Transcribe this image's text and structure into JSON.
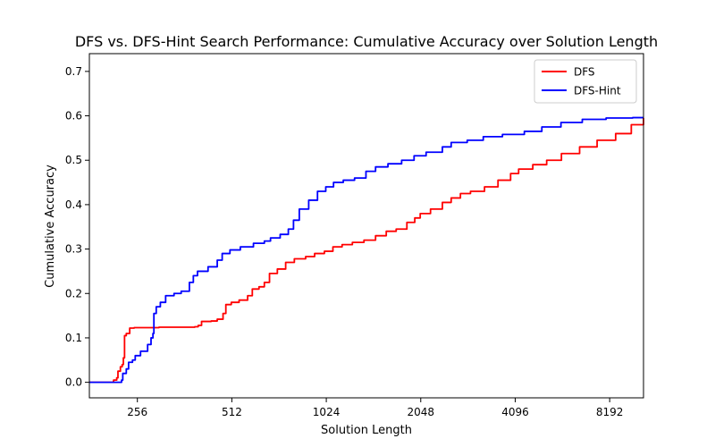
{
  "chart_data": {
    "type": "line",
    "title": "DFS vs. DFS-Hint Search Performance: Cumulative Accuracy over Solution Length",
    "xlabel": "Solution Length",
    "ylabel": "Cumulative Accuracy",
    "x_scale": "log2",
    "xlim": [
      180,
      10500
    ],
    "ylim": [
      -0.035,
      0.74
    ],
    "x_ticks": [
      256,
      512,
      1024,
      2048,
      4096,
      8192
    ],
    "x_tick_labels": [
      "256",
      "512",
      "1024",
      "2048",
      "4096",
      "8192"
    ],
    "y_ticks": [
      0.0,
      0.1,
      0.2,
      0.3,
      0.4,
      0.5,
      0.6,
      0.7
    ],
    "y_tick_labels": [
      "0.0",
      "0.1",
      "0.2",
      "0.3",
      "0.4",
      "0.5",
      "0.6",
      "0.7"
    ],
    "grid": false,
    "legend_position": "top-right",
    "series": [
      {
        "name": "DFS",
        "color": "#ff0000",
        "points": [
          [
            180,
            0.0
          ],
          [
            212,
            0.0
          ],
          [
            215,
            0.005
          ],
          [
            220,
            0.01
          ],
          [
            222,
            0.025
          ],
          [
            226,
            0.035
          ],
          [
            229,
            0.04
          ],
          [
            231,
            0.055
          ],
          [
            233,
            0.105
          ],
          [
            236,
            0.11
          ],
          [
            240,
            0.11
          ],
          [
            242,
            0.122
          ],
          [
            250,
            0.123
          ],
          [
            300,
            0.124
          ],
          [
            360,
            0.124
          ],
          [
            390,
            0.125
          ],
          [
            400,
            0.128
          ],
          [
            410,
            0.137
          ],
          [
            440,
            0.138
          ],
          [
            460,
            0.142
          ],
          [
            480,
            0.155
          ],
          [
            490,
            0.175
          ],
          [
            510,
            0.18
          ],
          [
            540,
            0.185
          ],
          [
            575,
            0.195
          ],
          [
            595,
            0.21
          ],
          [
            625,
            0.215
          ],
          [
            650,
            0.225
          ],
          [
            675,
            0.245
          ],
          [
            715,
            0.255
          ],
          [
            760,
            0.27
          ],
          [
            810,
            0.278
          ],
          [
            880,
            0.283
          ],
          [
            940,
            0.29
          ],
          [
            1010,
            0.295
          ],
          [
            1075,
            0.305
          ],
          [
            1150,
            0.31
          ],
          [
            1240,
            0.315
          ],
          [
            1350,
            0.32
          ],
          [
            1470,
            0.33
          ],
          [
            1590,
            0.34
          ],
          [
            1710,
            0.345
          ],
          [
            1850,
            0.36
          ],
          [
            1960,
            0.37
          ],
          [
            2040,
            0.38
          ],
          [
            2200,
            0.39
          ],
          [
            2400,
            0.405
          ],
          [
            2560,
            0.415
          ],
          [
            2740,
            0.425
          ],
          [
            2950,
            0.43
          ],
          [
            3270,
            0.44
          ],
          [
            3610,
            0.455
          ],
          [
            3960,
            0.47
          ],
          [
            4200,
            0.48
          ],
          [
            4660,
            0.49
          ],
          [
            5160,
            0.5
          ],
          [
            5750,
            0.515
          ],
          [
            6570,
            0.53
          ],
          [
            7470,
            0.545
          ],
          [
            8560,
            0.56
          ],
          [
            9600,
            0.58
          ],
          [
            10500,
            0.595
          ]
        ]
      },
      {
        "name": "DFS-Hint",
        "color": "#0000ff",
        "points": [
          [
            180,
            0.0
          ],
          [
            225,
            0.0
          ],
          [
            228,
            0.005
          ],
          [
            230,
            0.02
          ],
          [
            236,
            0.03
          ],
          [
            240,
            0.045
          ],
          [
            247,
            0.05
          ],
          [
            252,
            0.06
          ],
          [
            262,
            0.07
          ],
          [
            276,
            0.085
          ],
          [
            283,
            0.1
          ],
          [
            287,
            0.11
          ],
          [
            289,
            0.155
          ],
          [
            294,
            0.17
          ],
          [
            303,
            0.18
          ],
          [
            315,
            0.195
          ],
          [
            335,
            0.2
          ],
          [
            353,
            0.205
          ],
          [
            375,
            0.225
          ],
          [
            386,
            0.24
          ],
          [
            398,
            0.25
          ],
          [
            430,
            0.26
          ],
          [
            460,
            0.275
          ],
          [
            477,
            0.29
          ],
          [
            505,
            0.298
          ],
          [
            545,
            0.305
          ],
          [
            600,
            0.313
          ],
          [
            650,
            0.318
          ],
          [
            680,
            0.325
          ],
          [
            730,
            0.333
          ],
          [
            775,
            0.345
          ],
          [
            805,
            0.365
          ],
          [
            840,
            0.39
          ],
          [
            900,
            0.41
          ],
          [
            960,
            0.43
          ],
          [
            1020,
            0.44
          ],
          [
            1080,
            0.45
          ],
          [
            1160,
            0.455
          ],
          [
            1260,
            0.46
          ],
          [
            1370,
            0.475
          ],
          [
            1470,
            0.485
          ],
          [
            1610,
            0.492
          ],
          [
            1780,
            0.5
          ],
          [
            1950,
            0.51
          ],
          [
            2130,
            0.518
          ],
          [
            2400,
            0.53
          ],
          [
            2560,
            0.54
          ],
          [
            2880,
            0.545
          ],
          [
            3240,
            0.553
          ],
          [
            3730,
            0.558
          ],
          [
            4380,
            0.565
          ],
          [
            4980,
            0.575
          ],
          [
            5730,
            0.585
          ],
          [
            6700,
            0.592
          ],
          [
            7980,
            0.595
          ],
          [
            9700,
            0.596
          ],
          [
            10500,
            0.596
          ]
        ]
      }
    ]
  }
}
